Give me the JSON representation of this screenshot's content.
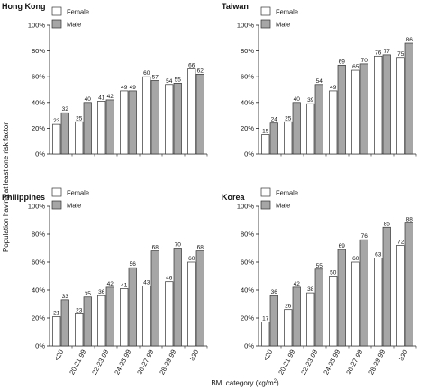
{
  "figure": {
    "ylabel": "Population having at least one risk factor",
    "xlabel_main": "BMI category (kg/m",
    "xlabel_sup": "2",
    "xlabel_end": ")"
  },
  "colors": {
    "female": "#ffffff",
    "male": "#a6a6a6",
    "axis": "#222222",
    "stroke": "#333333"
  },
  "chart_data": [
    {
      "type": "bar",
      "title": "Hong Kong",
      "categories": [
        "<20",
        "20-21·99",
        "22-23·99",
        "24-25·99",
        "26-27·99",
        "28-29·99",
        "≥30"
      ],
      "series": [
        {
          "name": "Female",
          "values": [
            23,
            25,
            41,
            49,
            60,
            54,
            66
          ]
        },
        {
          "name": "Male",
          "values": [
            32,
            40,
            42,
            49,
            57,
            55,
            62
          ]
        }
      ],
      "yticks": [
        "0%",
        "20%",
        "40%",
        "60%",
        "80%",
        "100%"
      ],
      "ylim": [
        0,
        100
      ],
      "legend": "top-left"
    },
    {
      "type": "bar",
      "title": "Taiwan",
      "categories": [
        "<20",
        "20-21·99",
        "22-23·99",
        "24-25·99",
        "26-27·99",
        "28-29·99",
        "≥30"
      ],
      "series": [
        {
          "name": "Female",
          "values": [
            15,
            25,
            39,
            49,
            65,
            76,
            75
          ]
        },
        {
          "name": "Male",
          "values": [
            24,
            40,
            54,
            69,
            70,
            77,
            86
          ]
        }
      ],
      "yticks": [
        "0%",
        "20%",
        "40%",
        "60%",
        "80%",
        "100%"
      ],
      "ylim": [
        0,
        100
      ],
      "legend": "top-left"
    },
    {
      "type": "bar",
      "title": "Philippines",
      "categories": [
        "<20",
        "20-21·99",
        "22-23·99",
        "24-25·99",
        "26-27·99",
        "28-29·99",
        "≥30"
      ],
      "series": [
        {
          "name": "Female",
          "values": [
            21,
            23,
            36,
            41,
            43,
            46,
            60
          ]
        },
        {
          "name": "Male",
          "values": [
            33,
            35,
            42,
            56,
            68,
            70,
            68
          ]
        }
      ],
      "yticks": [
        "0%",
        "20%",
        "40%",
        "60%",
        "80%",
        "100%"
      ],
      "ylim": [
        0,
        100
      ],
      "legend": "top-left"
    },
    {
      "type": "bar",
      "title": "Korea",
      "categories": [
        "<20",
        "20-21·99",
        "22-23·99",
        "24-25·99",
        "26-27·99",
        "28-29·99",
        "≥30"
      ],
      "series": [
        {
          "name": "Female",
          "values": [
            17,
            26,
            38,
            50,
            60,
            63,
            72
          ]
        },
        {
          "name": "Male",
          "values": [
            36,
            42,
            55,
            69,
            76,
            85,
            88
          ]
        }
      ],
      "yticks": [
        "0%",
        "20%",
        "40%",
        "60%",
        "80%",
        "100%"
      ],
      "ylim": [
        0,
        100
      ],
      "legend": "top-left"
    }
  ]
}
